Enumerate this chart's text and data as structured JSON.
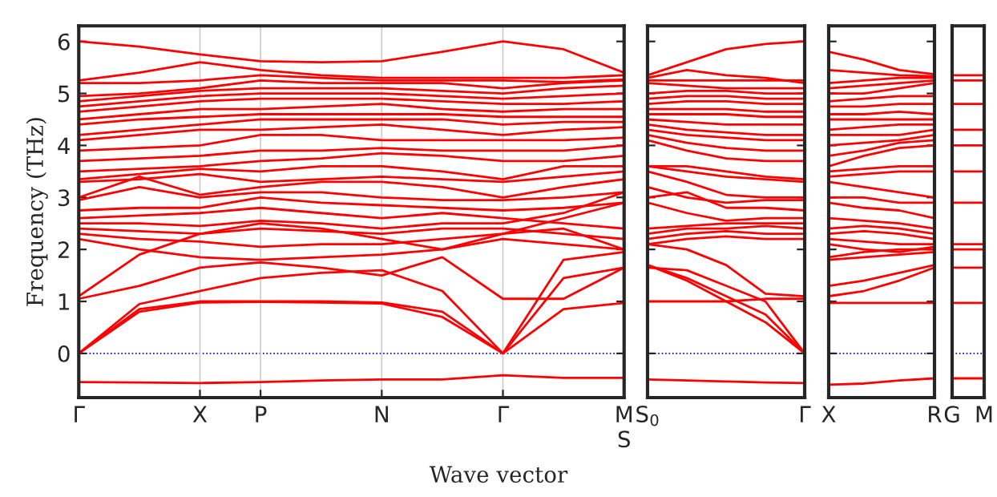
{
  "chart_data": [
    {
      "type": "line",
      "ylabel": "Frequency (THz)",
      "xlabel": "Wave vector",
      "categories": [
        "Γ",
        null,
        "X",
        "P",
        null,
        "N",
        null,
        "Γ",
        null,
        "M\nS"
      ],
      "ylim": [
        -0.85,
        6.3
      ],
      "yticks": [
        0,
        1,
        2,
        3,
        4,
        5,
        6
      ],
      "grid": "x",
      "ref_lines": [
        {
          "axis": "y",
          "value": 0,
          "color": "#0000ff",
          "line_style": "dotted"
        }
      ],
      "line_style": "solid",
      "marker": "none",
      "series": [
        {
          "color": "#ff0000",
          "values": [
            -0.55,
            -0.56,
            -0.57,
            -0.55,
            -0.52,
            -0.5,
            -0.5,
            -0.42,
            -0.47,
            -0.47
          ]
        },
        {
          "color": "#ff0000",
          "values": [
            0,
            0.8,
            0.98,
            0.99,
            0.98,
            0.96,
            0.7,
            0,
            0.85,
            0.97
          ]
        },
        {
          "color": "#ff0000",
          "values": [
            0,
            0.85,
            1.0,
            1.0,
            1.0,
            0.98,
            0.8,
            0,
            1.45,
            1.65
          ]
        },
        {
          "color": "#ff0000",
          "values": [
            0,
            0.95,
            1.2,
            1.45,
            1.55,
            1.6,
            1.2,
            0,
            1.8,
            1.95
          ]
        },
        {
          "color": "#ff0000",
          "values": [
            1.05,
            1.3,
            1.65,
            1.75,
            1.65,
            1.5,
            1.85,
            1.05,
            1.05,
            1.65
          ]
        },
        {
          "color": "#ff0000",
          "values": [
            1.1,
            1.9,
            2.3,
            2.5,
            2.4,
            2.2,
            2.0,
            2.3,
            2.4,
            2.0
          ]
        },
        {
          "color": "#ff0000",
          "values": [
            2.2,
            2.0,
            1.85,
            1.8,
            1.85,
            1.9,
            2.0,
            2.2,
            2.1,
            2.0
          ]
        },
        {
          "color": "#ff0000",
          "values": [
            2.3,
            2.2,
            2.15,
            2.05,
            2.1,
            2.1,
            2.2,
            2.3,
            2.6,
            2.9
          ]
        },
        {
          "color": "#ff0000",
          "values": [
            2.4,
            2.35,
            2.3,
            2.4,
            2.35,
            2.3,
            2.4,
            2.4,
            2.3,
            2.2
          ]
        },
        {
          "color": "#ff0000",
          "values": [
            2.5,
            2.5,
            2.45,
            2.55,
            2.5,
            2.4,
            2.5,
            2.5,
            2.7,
            3.1
          ]
        },
        {
          "color": "#ff0000",
          "values": [
            2.6,
            2.65,
            2.7,
            2.8,
            2.7,
            2.6,
            2.7,
            2.6,
            2.5,
            2.4
          ]
        },
        {
          "color": "#ff0000",
          "values": [
            2.75,
            2.8,
            2.8,
            3.0,
            2.9,
            2.85,
            2.8,
            2.75,
            2.8,
            2.9
          ]
        },
        {
          "color": "#ff0000",
          "values": [
            2.95,
            3.2,
            3.0,
            3.1,
            3.1,
            3.0,
            2.95,
            2.95,
            3.0,
            3.1
          ]
        },
        {
          "color": "#ff0000",
          "values": [
            3.0,
            3.4,
            3.05,
            3.2,
            3.3,
            3.3,
            3.2,
            3.0,
            3.2,
            3.35
          ]
        },
        {
          "color": "#ff0000",
          "values": [
            3.3,
            3.35,
            3.45,
            3.3,
            3.35,
            3.4,
            3.35,
            3.3,
            3.4,
            3.5
          ]
        },
        {
          "color": "#ff0000",
          "values": [
            3.35,
            3.45,
            3.55,
            3.5,
            3.6,
            3.6,
            3.5,
            3.35,
            3.6,
            3.6
          ]
        },
        {
          "color": "#ff0000",
          "values": [
            3.5,
            3.55,
            3.6,
            3.7,
            3.75,
            3.85,
            3.8,
            3.7,
            3.7,
            3.8
          ]
        },
        {
          "color": "#ff0000",
          "values": [
            3.7,
            3.75,
            3.8,
            3.9,
            3.9,
            3.95,
            3.9,
            3.9,
            3.9,
            4.0
          ]
        },
        {
          "color": "#ff0000",
          "values": [
            3.9,
            3.95,
            4.0,
            4.2,
            4.2,
            4.1,
            4.1,
            4.1,
            4.1,
            4.15
          ]
        },
        {
          "color": "#ff0000",
          "values": [
            4.1,
            4.2,
            4.3,
            4.3,
            4.35,
            4.4,
            4.3,
            4.2,
            4.3,
            4.35
          ]
        },
        {
          "color": "#ff0000",
          "values": [
            4.2,
            4.3,
            4.4,
            4.5,
            4.5,
            4.5,
            4.5,
            4.4,
            4.45,
            4.45
          ]
        },
        {
          "color": "#ff0000",
          "values": [
            4.4,
            4.5,
            4.55,
            4.6,
            4.6,
            4.6,
            4.6,
            4.55,
            4.55,
            4.55
          ]
        },
        {
          "color": "#ff0000",
          "values": [
            4.5,
            4.6,
            4.7,
            4.7,
            4.75,
            4.8,
            4.7,
            4.65,
            4.7,
            4.7
          ]
        },
        {
          "color": "#ff0000",
          "values": [
            4.65,
            4.75,
            4.85,
            4.9,
            4.9,
            4.9,
            4.85,
            4.8,
            4.8,
            4.85
          ]
        },
        {
          "color": "#ff0000",
          "values": [
            4.75,
            4.85,
            4.95,
            5.0,
            5.0,
            5.0,
            4.95,
            4.9,
            4.95,
            5.0
          ]
        },
        {
          "color": "#ff0000",
          "values": [
            4.85,
            4.95,
            5.05,
            5.1,
            5.1,
            5.1,
            5.05,
            5.0,
            5.1,
            5.15
          ]
        },
        {
          "color": "#ff0000",
          "values": [
            4.95,
            5.0,
            5.1,
            5.25,
            5.2,
            5.2,
            5.2,
            5.1,
            5.2,
            5.25
          ]
        },
        {
          "color": "#ff0000",
          "values": [
            5.2,
            5.2,
            5.25,
            5.35,
            5.3,
            5.25,
            5.25,
            5.25,
            5.22,
            5.27
          ]
        },
        {
          "color": "#ff0000",
          "values": [
            5.25,
            5.4,
            5.6,
            5.45,
            5.35,
            5.3,
            5.3,
            5.3,
            5.3,
            5.35
          ]
        },
        {
          "color": "#ff0000",
          "values": [
            6.0,
            5.9,
            5.75,
            5.62,
            5.6,
            5.62,
            5.8,
            6.0,
            5.85,
            5.4
          ]
        }
      ]
    },
    {
      "type": "line",
      "categories": [
        "S$_{0}$",
        null,
        null,
        null,
        "Γ"
      ],
      "ylim": [
        -0.85,
        6.3
      ],
      "yticks": [
        0,
        1,
        2,
        3,
        4,
        5,
        6
      ],
      "tick_labels": "x",
      "ref_lines": [
        {
          "axis": "y",
          "value": 0,
          "color": "#0000ff",
          "line_style": "dotted"
        }
      ],
      "line_style": "solid",
      "marker": "none",
      "series": [
        {
          "color": "#ff0000",
          "values": [
            -0.5,
            -0.52,
            -0.54,
            -0.56,
            -0.57
          ]
        },
        {
          "color": "#ff0000",
          "values": [
            1.7,
            1.4,
            1.0,
            0.6,
            0
          ]
        },
        {
          "color": "#ff0000",
          "values": [
            1.7,
            1.45,
            1.1,
            0.75,
            0
          ]
        },
        {
          "color": "#ff0000",
          "values": [
            1.65,
            1.6,
            1.3,
            1.0,
            0
          ]
        },
        {
          "color": "#ff0000",
          "values": [
            1.0,
            1.0,
            1.0,
            1.05,
            1.05
          ]
        },
        {
          "color": "#ff0000",
          "values": [
            2.1,
            2.0,
            1.7,
            1.15,
            1.1
          ]
        },
        {
          "color": "#ff0000",
          "values": [
            2.1,
            2.2,
            2.25,
            2.2,
            2.2
          ]
        },
        {
          "color": "#ff0000",
          "values": [
            2.2,
            2.3,
            2.35,
            2.3,
            2.3
          ]
        },
        {
          "color": "#ff0000",
          "values": [
            2.3,
            2.4,
            2.4,
            2.45,
            2.4
          ]
        },
        {
          "color": "#ff0000",
          "values": [
            2.4,
            2.45,
            2.5,
            2.5,
            2.5
          ]
        },
        {
          "color": "#ff0000",
          "values": [
            2.9,
            2.7,
            2.55,
            2.6,
            2.6
          ]
        },
        {
          "color": "#ff0000",
          "values": [
            3.0,
            3.1,
            2.8,
            2.8,
            2.75
          ]
        },
        {
          "color": "#ff0000",
          "values": [
            3.2,
            3.0,
            2.9,
            2.95,
            2.95
          ]
        },
        {
          "color": "#ff0000",
          "values": [
            3.5,
            3.3,
            3.05,
            3.0,
            3.0
          ]
        },
        {
          "color": "#ff0000",
          "values": [
            3.6,
            3.5,
            3.4,
            3.35,
            3.3
          ]
        },
        {
          "color": "#ff0000",
          "values": [
            3.6,
            3.6,
            3.5,
            3.4,
            3.35
          ]
        },
        {
          "color": "#ff0000",
          "values": [
            4.1,
            3.9,
            3.75,
            3.7,
            3.7
          ]
        },
        {
          "color": "#ff0000",
          "values": [
            4.2,
            4.05,
            3.95,
            3.9,
            3.9
          ]
        },
        {
          "color": "#ff0000",
          "values": [
            4.3,
            4.2,
            4.15,
            4.1,
            4.1
          ]
        },
        {
          "color": "#ff0000",
          "values": [
            4.4,
            4.3,
            4.25,
            4.2,
            4.2
          ]
        },
        {
          "color": "#ff0000",
          "values": [
            4.5,
            4.45,
            4.4,
            4.4,
            4.4
          ]
        },
        {
          "color": "#ff0000",
          "values": [
            4.6,
            4.6,
            4.6,
            4.55,
            4.55
          ]
        },
        {
          "color": "#ff0000",
          "values": [
            4.7,
            4.7,
            4.7,
            4.65,
            4.65
          ]
        },
        {
          "color": "#ff0000",
          "values": [
            4.8,
            4.85,
            4.85,
            4.8,
            4.8
          ]
        },
        {
          "color": "#ff0000",
          "values": [
            4.9,
            4.95,
            4.95,
            4.9,
            4.9
          ]
        },
        {
          "color": "#ff0000",
          "values": [
            5.0,
            5.05,
            5.05,
            5.0,
            5.0
          ]
        },
        {
          "color": "#ff0000",
          "values": [
            5.2,
            5.15,
            5.1,
            5.1,
            5.1
          ]
        },
        {
          "color": "#ff0000",
          "values": [
            5.25,
            5.25,
            5.25,
            5.25,
            5.25
          ]
        },
        {
          "color": "#ff0000",
          "values": [
            5.3,
            5.45,
            5.35,
            5.3,
            5.2
          ]
        },
        {
          "color": "#ff0000",
          "values": [
            5.35,
            5.6,
            5.85,
            5.95,
            6.0
          ]
        }
      ]
    },
    {
      "type": "line",
      "categories": [
        "X",
        null,
        null,
        "R"
      ],
      "ylim": [
        -0.85,
        6.3
      ],
      "yticks": [
        0,
        1,
        2,
        3,
        4,
        5,
        6
      ],
      "tick_labels": "x",
      "ref_lines": [
        {
          "axis": "y",
          "value": 0,
          "color": "#0000ff",
          "line_style": "dotted"
        }
      ],
      "line_style": "solid",
      "marker": "none",
      "series": [
        {
          "color": "#ff0000",
          "values": [
            -0.6,
            -0.58,
            -0.52,
            -0.48
          ]
        },
        {
          "color": "#ff0000",
          "values": [
            0.97,
            0.97,
            0.97,
            0.97
          ]
        },
        {
          "color": "#ff0000",
          "values": [
            1.1,
            1.2,
            1.4,
            1.65
          ]
        },
        {
          "color": "#ff0000",
          "values": [
            1.3,
            1.4,
            1.55,
            1.7
          ]
        },
        {
          "color": "#ff0000",
          "values": [
            1.8,
            1.85,
            1.9,
            1.95
          ]
        },
        {
          "color": "#ff0000",
          "values": [
            1.85,
            1.95,
            2.0,
            2.0
          ]
        },
        {
          "color": "#ff0000",
          "values": [
            2.1,
            2.0,
            1.95,
            2.05
          ]
        },
        {
          "color": "#ff0000",
          "values": [
            2.2,
            2.15,
            2.1,
            2.1
          ]
        },
        {
          "color": "#ff0000",
          "values": [
            2.3,
            2.35,
            2.3,
            2.2
          ]
        },
        {
          "color": "#ff0000",
          "values": [
            2.4,
            2.45,
            2.4,
            2.3
          ]
        },
        {
          "color": "#ff0000",
          "values": [
            2.6,
            2.55,
            2.5,
            2.4
          ]
        },
        {
          "color": "#ff0000",
          "values": [
            2.9,
            2.8,
            2.75,
            2.6
          ]
        },
        {
          "color": "#ff0000",
          "values": [
            3.0,
            3.0,
            2.9,
            2.9
          ]
        },
        {
          "color": "#ff0000",
          "values": [
            3.3,
            3.2,
            3.1,
            3.0
          ]
        },
        {
          "color": "#ff0000",
          "values": [
            3.4,
            3.45,
            3.5,
            3.5
          ]
        },
        {
          "color": "#ff0000",
          "values": [
            3.5,
            3.55,
            3.6,
            3.6
          ]
        },
        {
          "color": "#ff0000",
          "values": [
            3.6,
            3.8,
            3.95,
            4.0
          ]
        },
        {
          "color": "#ff0000",
          "values": [
            3.8,
            3.9,
            4.05,
            4.1
          ]
        },
        {
          "color": "#ff0000",
          "values": [
            4.0,
            4.05,
            4.1,
            4.2
          ]
        },
        {
          "color": "#ff0000",
          "values": [
            4.2,
            4.2,
            4.2,
            4.3
          ]
        },
        {
          "color": "#ff0000",
          "values": [
            4.3,
            4.35,
            4.4,
            4.4
          ]
        },
        {
          "color": "#ff0000",
          "values": [
            4.5,
            4.5,
            4.5,
            4.5
          ]
        },
        {
          "color": "#ff0000",
          "values": [
            4.6,
            4.6,
            4.65,
            4.6
          ]
        },
        {
          "color": "#ff0000",
          "values": [
            4.75,
            4.75,
            4.8,
            4.8
          ]
        },
        {
          "color": "#ff0000",
          "values": [
            4.85,
            4.9,
            4.95,
            4.95
          ]
        },
        {
          "color": "#ff0000",
          "values": [
            5.0,
            5.0,
            5.1,
            5.2
          ]
        },
        {
          "color": "#ff0000",
          "values": [
            5.1,
            5.15,
            5.2,
            5.25
          ]
        },
        {
          "color": "#ff0000",
          "values": [
            5.2,
            5.25,
            5.3,
            5.3
          ]
        },
        {
          "color": "#ff0000",
          "values": [
            5.45,
            5.4,
            5.35,
            5.33
          ]
        },
        {
          "color": "#ff0000",
          "values": [
            5.8,
            5.65,
            5.45,
            5.37
          ]
        }
      ]
    },
    {
      "type": "line",
      "categories": [
        "G",
        "M"
      ],
      "ylim": [
        -0.85,
        6.3
      ],
      "yticks": [
        0,
        1,
        2,
        3,
        4,
        5,
        6
      ],
      "tick_labels": "x",
      "ref_lines": [
        {
          "axis": "y",
          "value": 0,
          "color": "#0000ff",
          "line_style": "dotted"
        }
      ],
      "line_style": "solid",
      "marker": "none",
      "series": [
        {
          "color": "#ff0000",
          "values": [
            -0.48,
            -0.48
          ]
        },
        {
          "color": "#ff0000",
          "values": [
            0.97,
            0.97
          ]
        },
        {
          "color": "#ff0000",
          "values": [
            1.65,
            1.65
          ]
        },
        {
          "color": "#ff0000",
          "values": [
            2.0,
            2.0
          ]
        },
        {
          "color": "#ff0000",
          "values": [
            2.1,
            2.1
          ]
        },
        {
          "color": "#ff0000",
          "values": [
            2.9,
            2.9
          ]
        },
        {
          "color": "#ff0000",
          "values": [
            3.5,
            3.5
          ]
        },
        {
          "color": "#ff0000",
          "values": [
            4.0,
            4.0
          ]
        },
        {
          "color": "#ff0000",
          "values": [
            4.3,
            4.3
          ]
        },
        {
          "color": "#ff0000",
          "values": [
            4.8,
            4.8
          ]
        },
        {
          "color": "#ff0000",
          "values": [
            5.25,
            5.25
          ]
        },
        {
          "color": "#ff0000",
          "values": [
            5.35,
            5.35
          ]
        }
      ]
    }
  ]
}
